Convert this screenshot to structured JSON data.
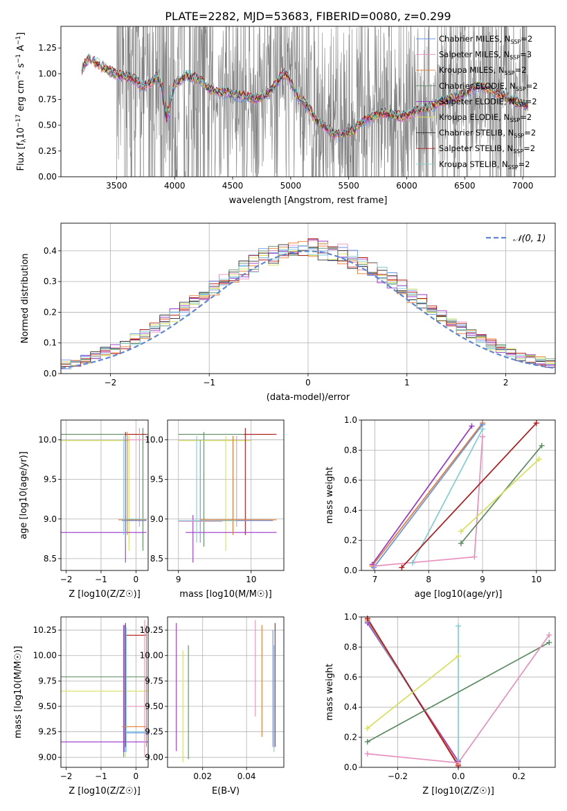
{
  "chart_data": [
    {
      "id": "spectrum",
      "type": "line",
      "title": "PLATE=2282, MJD=53683, FIBERID=0080, z=0.299",
      "xlabel": "wavelength [Angstrom, rest frame]",
      "ylabel": "Flux [f_λ 10^-17 erg cm^-2 s^-1 A^-1]",
      "xlim": [
        3020,
        7280
      ],
      "ylim": [
        0,
        1.46
      ],
      "xticks": [
        3500,
        4000,
        4500,
        5000,
        5500,
        6000,
        6500,
        7000
      ],
      "yticks": [
        "0.00",
        "0.25",
        "0.50",
        "0.75",
        "1.00",
        "1.25"
      ],
      "grid": false,
      "legend_position": "top-right",
      "data_color": "#808080",
      "legend": [
        {
          "base": "Chabrier MILES, N",
          "sub": "SSP",
          "tail": "=2",
          "color": "#6495ed"
        },
        {
          "base": "Salpeter MILES, N",
          "sub": "SSP",
          "tail": "=3",
          "color": "#e78fbd"
        },
        {
          "base": "Kroupa MILES, N",
          "sub": "SSP",
          "tail": "=2",
          "color": "#e8792b"
        },
        {
          "base": "Chabrier ELODIE, N",
          "sub": "SSP",
          "tail": "=2",
          "color": "#5a8a60"
        },
        {
          "base": "Salpeter ELODIE, N",
          "sub": "SSP",
          "tail": "=2",
          "color": "#9933cc"
        },
        {
          "base": "Kroupa ELODIE, N",
          "sub": "SSP",
          "tail": "=2",
          "color": "#d4e157"
        },
        {
          "base": "Chabrier STELIB, N",
          "sub": "SSP",
          "tail": "=2",
          "color": "#333333"
        },
        {
          "base": "Salpeter STELIB, N",
          "sub": "SSP",
          "tail": "=2",
          "color": "#b01818"
        },
        {
          "base": "Kroupa STELIB, N",
          "sub": "SSP",
          "tail": "=2",
          "color": "#7fcdd0"
        }
      ],
      "model_knots": [
        [
          3200,
          1.05
        ],
        [
          3260,
          1.15
        ],
        [
          3330,
          1.1
        ],
        [
          3400,
          1.05
        ],
        [
          3480,
          1.0
        ],
        [
          3550,
          0.98
        ],
        [
          3650,
          0.95
        ],
        [
          3720,
          0.88
        ],
        [
          3800,
          0.92
        ],
        [
          3850,
          0.98
        ],
        [
          3900,
          0.85
        ],
        [
          3930,
          0.62
        ],
        [
          3970,
          0.75
        ],
        [
          4000,
          0.9
        ],
        [
          4100,
          0.98
        ],
        [
          4200,
          0.95
        ],
        [
          4300,
          0.85
        ],
        [
          4400,
          0.82
        ],
        [
          4500,
          0.8
        ],
        [
          4600,
          0.78
        ],
        [
          4700,
          0.76
        ],
        [
          4800,
          0.8
        ],
        [
          4860,
          0.88
        ],
        [
          4920,
          0.98
        ],
        [
          4960,
          1.0
        ],
        [
          5000,
          0.92
        ],
        [
          5060,
          0.78
        ],
        [
          5150,
          0.68
        ],
        [
          5220,
          0.55
        ],
        [
          5300,
          0.48
        ],
        [
          5360,
          0.42
        ],
        [
          5420,
          0.4
        ],
        [
          5480,
          0.43
        ],
        [
          5540,
          0.45
        ],
        [
          5600,
          0.52
        ],
        [
          5700,
          0.58
        ],
        [
          5800,
          0.62
        ],
        [
          5880,
          0.6
        ],
        [
          5950,
          0.58
        ],
        [
          6050,
          0.62
        ],
        [
          6150,
          0.66
        ],
        [
          6250,
          0.7
        ],
        [
          6350,
          0.75
        ],
        [
          6450,
          0.78
        ],
        [
          6530,
          0.82
        ],
        [
          6560,
          0.85
        ],
        [
          6620,
          0.88
        ],
        [
          6700,
          0.86
        ],
        [
          6800,
          0.8
        ],
        [
          6900,
          0.75
        ],
        [
          7000,
          0.7
        ],
        [
          7050,
          0.68
        ]
      ],
      "data_wavelength_range": [
        3500,
        7050
      ]
    },
    {
      "id": "residuals",
      "type": "step",
      "xlabel": "(data-model)/error",
      "ylabel": "Normed distribution",
      "xlim": [
        -2.5,
        2.5
      ],
      "ylim": [
        0,
        0.49
      ],
      "xticks": [
        "−2",
        "−1",
        "0",
        "1",
        "2"
      ],
      "yticks": [
        "0.0",
        "0.1",
        "0.2",
        "0.3",
        "0.4"
      ],
      "grid": true,
      "legend": [
        {
          "label": "𝒩(0, 1)",
          "color": "#5b86d6",
          "style": "dashed"
        }
      ],
      "legend_position": "top-right",
      "bin_width": 0.1
    },
    {
      "id": "age-vs-Z",
      "type": "errorbar",
      "xlabel": "Z [log10(Z/Z☉)]",
      "ylabel": "age  [log10(age/yr)]",
      "xlim": [
        -2.15,
        0.35
      ],
      "ylim": [
        8.35,
        10.25
      ],
      "xticks": [
        "−2",
        "−1",
        "0"
      ],
      "yticks": [
        "8.5",
        "9.0",
        "9.5",
        "10.0"
      ],
      "grid": true
    },
    {
      "id": "age-vs-mass",
      "type": "errorbar",
      "xlabel": "mass [log10(M/M☉)]",
      "xlim": [
        8.85,
        10.45
      ],
      "ylim": [
        8.35,
        10.25
      ],
      "xticks": [
        "9",
        "10"
      ],
      "yticks": [
        "8.5",
        "9.0",
        "9.5",
        "10.0"
      ],
      "grid": true
    },
    {
      "id": "weight-vs-age",
      "type": "line",
      "xlabel": "age  [log10(age/yr)]",
      "ylabel": "mass weight",
      "xlim": [
        6.75,
        10.35
      ],
      "ylim": [
        0,
        1.0
      ],
      "xticks": [
        "7",
        "8",
        "9",
        "10"
      ],
      "yticks": [
        "0.0",
        "0.2",
        "0.4",
        "0.6",
        "0.8",
        "1.0"
      ],
      "grid": true,
      "series": [
        {
          "color": "#9933cc",
          "x": [
            6.95,
            8.8
          ],
          "y": [
            0.04,
            0.96
          ]
        },
        {
          "color": "#e8792b",
          "x": [
            6.95,
            9.0
          ],
          "y": [
            0.03,
            0.98
          ]
        },
        {
          "color": "#6495ed",
          "x": [
            6.98,
            9.0
          ],
          "y": [
            0.02,
            0.97
          ]
        },
        {
          "color": "#7fcdd0",
          "x": [
            7.7,
            9.0
          ],
          "y": [
            0.05,
            0.94
          ]
        },
        {
          "color": "#e78fbd",
          "x": [
            7.0,
            8.85,
            9.0
          ],
          "y": [
            0.03,
            0.09,
            0.89
          ]
        },
        {
          "color": "#b01818",
          "x": [
            7.5,
            10.0
          ],
          "y": [
            0.02,
            0.98
          ]
        },
        {
          "color": "#5a8a60",
          "x": [
            8.6,
            10.1
          ],
          "y": [
            0.18,
            0.83
          ]
        },
        {
          "color": "#d4e157",
          "x": [
            8.6,
            10.05
          ],
          "y": [
            0.26,
            0.74
          ]
        }
      ]
    },
    {
      "id": "mass-vs-Z",
      "type": "errorbar",
      "xlabel": "Z [log10(Z/Z☉)]",
      "ylabel": "mass [log10(M/M☉)]",
      "xlim": [
        -2.15,
        0.35
      ],
      "ylim": [
        8.9,
        10.38
      ],
      "xticks": [
        "−2",
        "−1",
        "0"
      ],
      "yticks": [
        "9.00",
        "9.25",
        "9.50",
        "9.75",
        "10.00",
        "10.25"
      ],
      "grid": true
    },
    {
      "id": "mass-vs-EBV",
      "type": "errorbar",
      "xlabel": "E(B-V)",
      "xlim": [
        0.004,
        0.057
      ],
      "ylim": [
        8.9,
        10.38
      ],
      "xticks": [
        "0.02",
        "0.04"
      ],
      "yticks": [
        "9.00",
        "9.25",
        "9.50",
        "9.75",
        "10.00",
        "10.25"
      ],
      "grid": true
    },
    {
      "id": "weight-vs-Z",
      "type": "line",
      "xlabel": "Z [log10(Z/Z☉)]",
      "ylabel": "mass weight",
      "xlim": [
        -0.32,
        0.32
      ],
      "ylim": [
        0,
        1.0
      ],
      "xticks": [
        "−0.2",
        "0.0",
        "0.2"
      ],
      "yticks": [
        "0.0",
        "0.2",
        "0.4",
        "0.6",
        "0.8",
        "1.0"
      ],
      "grid": true,
      "series": [
        {
          "color": "#9933cc",
          "x": [
            -0.3,
            0.0
          ],
          "y": [
            0.96,
            0.04
          ]
        },
        {
          "color": "#6495ed",
          "x": [
            -0.3,
            0.0
          ],
          "y": [
            0.97,
            0.02
          ]
        },
        {
          "color": "#e8792b",
          "x": [
            -0.3,
            0.0
          ],
          "y": [
            0.98,
            0.02
          ]
        },
        {
          "color": "#b01818",
          "x": [
            -0.3,
            0.0
          ],
          "y": [
            0.99,
            0.01
          ]
        },
        {
          "color": "#7fcdd0",
          "x": [
            0.0,
            0.0
          ],
          "y": [
            0.05,
            0.94
          ]
        },
        {
          "color": "#d4e157",
          "x": [
            -0.3,
            0.0
          ],
          "y": [
            0.26,
            0.74
          ]
        },
        {
          "color": "#5a8a60",
          "x": [
            -0.3,
            0.3
          ],
          "y": [
            0.17,
            0.83
          ]
        },
        {
          "color": "#e78fbd",
          "x": [
            -0.3,
            0.0,
            0.3
          ],
          "y": [
            0.09,
            0.03,
            0.88
          ]
        }
      ]
    }
  ]
}
